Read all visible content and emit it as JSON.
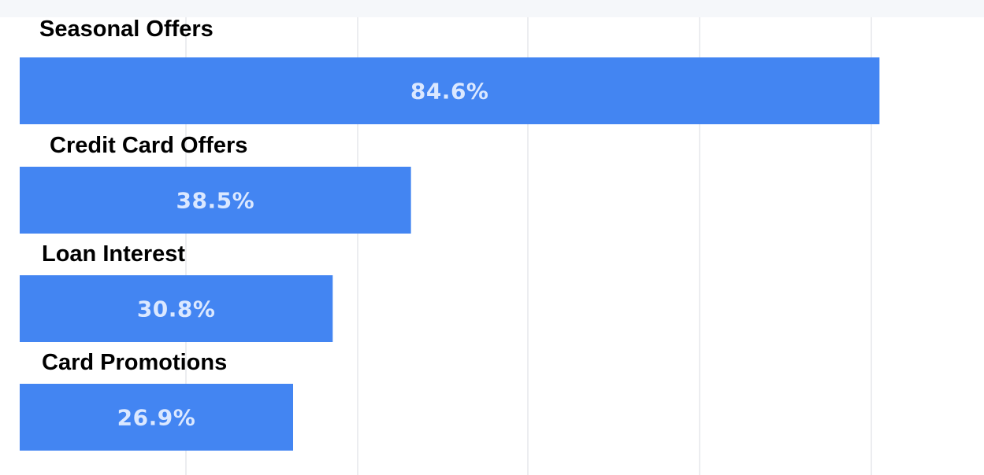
{
  "chart_data": {
    "type": "bar",
    "orientation": "horizontal",
    "categories": [
      "Seasonal Offers",
      "Credit Card Offers",
      "Loan Interest",
      "Card Promotions"
    ],
    "values": [
      84.6,
      38.5,
      30.8,
      26.9
    ],
    "value_labels": [
      "84.6%",
      "38.5%",
      "30.8%",
      "26.9%"
    ],
    "unit": "%",
    "xlim": [
      -2.3,
      115
    ],
    "grid": true,
    "title": "",
    "xlabel": "",
    "ylabel": ""
  },
  "colors": {
    "bar": "#4385f2",
    "value_label": "#dbe8ff",
    "category_label": "#000000",
    "grid": "#ecedf0",
    "top_strip": "#f5f7fa"
  }
}
